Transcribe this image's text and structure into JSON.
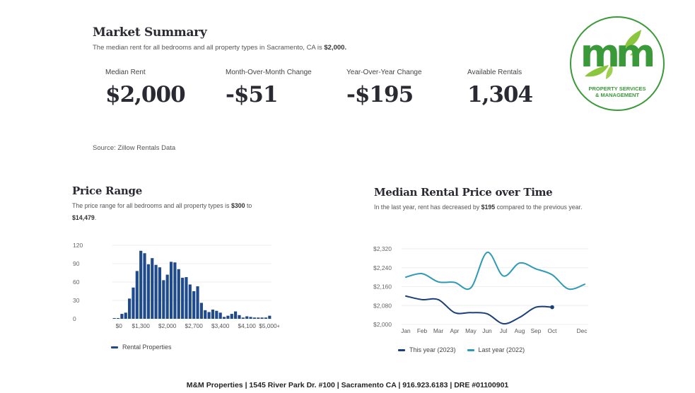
{
  "summary": {
    "title": "Market Summary",
    "desc_prefix": "The median rent for all bedrooms and all property types in Sacramento, CA is ",
    "desc_value": "$2,000.",
    "metrics": [
      {
        "label": "Median Rent",
        "value": "$2,000"
      },
      {
        "label": "Month-Over-Month Change",
        "value": "-$51"
      },
      {
        "label": "Year-Over-Year Change",
        "value": "-$195"
      },
      {
        "label": "Available Rentals",
        "value": "1,304"
      }
    ],
    "source": "Source: Zillow Rentals Data"
  },
  "logo": {
    "letters": "mm",
    "line1": "PROPERTY SERVICES",
    "line2": "& MANAGEMENT",
    "color": "#3a9a3a",
    "leaf_color": "#8cc63f"
  },
  "price_range": {
    "title": "Price Range",
    "desc_prefix": "The price range for all bedrooms and all property types is ",
    "desc_low": "$300",
    "desc_mid": " to ",
    "desc_high": "$14,479",
    "desc_suffix": ".",
    "legend": "Rental Properties"
  },
  "median_over_time": {
    "title": "Median Rental Price over Time",
    "desc_prefix": "In the last year, rent has decreased by ",
    "desc_value": "$195",
    "desc_suffix": " compared to the previous year.",
    "legend_this_year": "This year (2023)",
    "legend_last_year": "Last year (2022)"
  },
  "footer": "M&M Properties | 1545 River Park Dr. #100 | Sacramento CA | 916.923.6183 | DRE #01100901",
  "colors": {
    "bar_dark": "#1f4a8c",
    "bar_light": "#5b8fd6",
    "this_year": "#1b3f7a",
    "last_year": "#2e9ab5",
    "grid": "#eeeeee"
  },
  "chart_data": [
    {
      "type": "bar",
      "title": "Price Range",
      "xlabel": "",
      "ylabel": "",
      "ylim": [
        0,
        120
      ],
      "yticks": [
        "0",
        "30",
        "60",
        "90",
        "120"
      ],
      "ytick_values": [
        0,
        30,
        60,
        90,
        120
      ],
      "xtick_labels": [
        "$0",
        "$1,300",
        "$2,000",
        "$2,700",
        "$3,400",
        "$4,100",
        "$5,000+"
      ],
      "xtick_bar_index": [
        0,
        7,
        14,
        21,
        28,
        35,
        41
      ],
      "series": [
        {
          "name": "Rental Properties",
          "values": [
            1,
            1,
            8,
            10,
            33,
            51,
            78,
            111,
            107,
            89,
            99,
            88,
            84,
            63,
            72,
            93,
            92,
            81,
            67,
            68,
            56,
            45,
            53,
            26,
            14,
            11,
            15,
            13,
            10,
            3,
            5,
            8,
            12,
            6,
            2,
            4,
            3,
            2,
            2,
            2,
            2,
            5
          ]
        }
      ],
      "legend": "bottom-left",
      "grid": true
    },
    {
      "type": "line",
      "title": "Median Rental Price over Time",
      "xlabel": "",
      "ylabel": "",
      "categories": [
        "Jan",
        "Feb",
        "Mar",
        "Apr",
        "May",
        "Jun",
        "Jul",
        "Aug",
        "Sep",
        "Oct",
        "Nov",
        "Dec"
      ],
      "category_labels": [
        "Jan",
        "Feb",
        "Mar",
        "Apr",
        "May",
        "Jun",
        "Jul",
        "Aug",
        "Sep",
        "Oct",
        "",
        "Dec"
      ],
      "ylim": [
        2000,
        2320
      ],
      "yticks": [
        "$2,000",
        "$2,080",
        "$2,160",
        "$2,240",
        "$2,320"
      ],
      "ytick_values": [
        2000,
        2080,
        2160,
        2240,
        2320
      ],
      "series": [
        {
          "name": "This year (2023)",
          "values": [
            2120,
            2105,
            2105,
            2050,
            2050,
            2045,
            2003,
            2030,
            2073,
            2073,
            null,
            null
          ]
        },
        {
          "name": "Last year (2022)",
          "values": [
            2200,
            2215,
            2180,
            2178,
            2155,
            2305,
            2205,
            2260,
            2235,
            2210,
            2150,
            2170
          ]
        }
      ],
      "legend": "bottom-center",
      "grid": true
    }
  ]
}
